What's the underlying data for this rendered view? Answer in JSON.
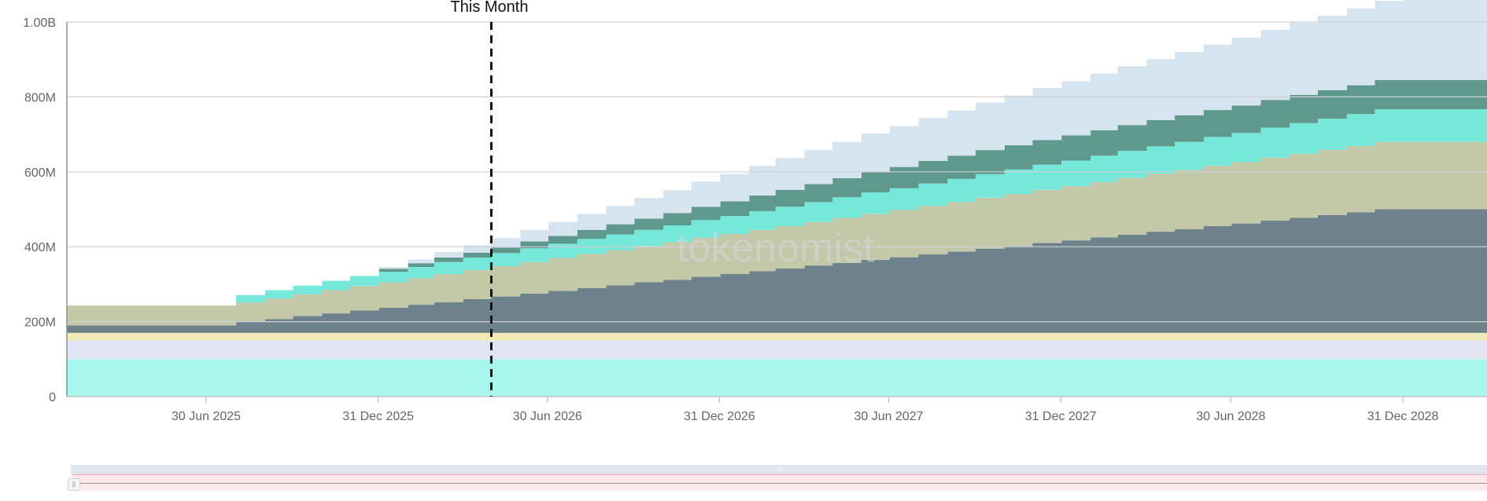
{
  "chart_data": {
    "type": "area",
    "stacked": true,
    "step": true,
    "x_axis": {
      "tick_labels": [
        "30 Jun 2025",
        "31 Dec 2025",
        "30 Jun 2026",
        "31 Dec 2026",
        "30 Jun 2027",
        "31 Dec 2027",
        "30 Jun 2028",
        "31 Dec 2028"
      ],
      "range": [
        "2025-02-01",
        "2029-03-31"
      ]
    },
    "y_axis": {
      "tick_labels": [
        "0",
        "200M",
        "400M",
        "600M",
        "800M",
        "1.00B"
      ],
      "ylim": [
        0,
        1000000000
      ]
    },
    "grid": true,
    "marker": {
      "label": "This Month",
      "date": "2026-05-01"
    },
    "watermark": "tokenomist",
    "x": [
      "2025-02-01",
      "2025-03-01",
      "2025-04-01",
      "2025-05-01",
      "2025-06-01",
      "2025-07-01",
      "2025-08-01",
      "2025-09-01",
      "2025-10-01",
      "2025-11-01",
      "2025-12-01",
      "2026-01-01",
      "2026-02-01",
      "2026-03-01",
      "2026-04-01",
      "2026-05-01",
      "2026-06-01",
      "2026-07-01",
      "2026-08-01",
      "2026-09-01",
      "2026-10-01",
      "2026-11-01",
      "2026-12-01",
      "2027-01-01",
      "2027-02-01",
      "2027-03-01",
      "2027-04-01",
      "2027-05-01",
      "2027-06-01",
      "2027-07-01",
      "2027-08-01",
      "2027-09-01",
      "2027-10-01",
      "2027-11-01",
      "2027-12-01",
      "2028-01-01",
      "2028-02-01",
      "2028-03-01",
      "2028-04-01",
      "2028-05-01",
      "2028-06-01",
      "2028-07-01",
      "2028-08-01",
      "2028-09-01",
      "2028-10-01",
      "2028-11-01",
      "2028-12-01",
      "2029-01-01",
      "2029-02-01",
      "2029-03-01",
      "2029-04-01"
    ],
    "series": [
      {
        "color": "#a7f7ec",
        "values": [
          100,
          100,
          100,
          100,
          100,
          100,
          100,
          100,
          100,
          100,
          100,
          100,
          100,
          100,
          100,
          100,
          100,
          100,
          100,
          100,
          100,
          100,
          100,
          100,
          100,
          100,
          100,
          100,
          100,
          100,
          100,
          100,
          100,
          100,
          100,
          100,
          100,
          100,
          100,
          100,
          100,
          100,
          100,
          100,
          100,
          100,
          100,
          100,
          100,
          100,
          100
        ]
      },
      {
        "color": "#e4e3f1",
        "values": [
          50,
          50,
          50,
          50,
          50,
          50,
          50,
          50,
          50,
          50,
          50,
          50,
          50,
          50,
          50,
          50,
          50,
          50,
          50,
          50,
          50,
          50,
          50,
          50,
          50,
          50,
          50,
          50,
          50,
          50,
          50,
          50,
          50,
          50,
          50,
          50,
          50,
          50,
          50,
          50,
          50,
          50,
          50,
          50,
          50,
          50,
          50,
          50,
          50,
          50,
          50
        ]
      },
      {
        "color": "#f1ecb6",
        "values": [
          20,
          20,
          20,
          20,
          20,
          20,
          20,
          20,
          20,
          20,
          20,
          20,
          20,
          20,
          20,
          20,
          20,
          20,
          20,
          20,
          20,
          20,
          20,
          20,
          20,
          20,
          20,
          20,
          20,
          20,
          20,
          20,
          20,
          20,
          20,
          20,
          20,
          20,
          20,
          20,
          20,
          20,
          20,
          20,
          20,
          20,
          20,
          20,
          20,
          20,
          20
        ]
      },
      {
        "color": "#6e828c",
        "values": [
          20,
          20,
          20,
          20,
          20,
          20,
          30,
          37,
          45,
          52,
          60,
          67,
          75,
          82,
          90,
          97,
          105,
          112,
          120,
          127,
          135,
          142,
          150,
          157,
          165,
          172,
          180,
          187,
          195,
          202,
          210,
          217,
          225,
          232,
          240,
          247,
          255,
          262,
          270,
          277,
          285,
          292,
          300,
          307,
          315,
          322,
          330,
          330,
          330,
          330,
          330
        ]
      },
      {
        "color": "#c3c8a8",
        "values": [
          53,
          53,
          53,
          53,
          53,
          53,
          51,
          55,
          58,
          62,
          65,
          68,
          71,
          75,
          78,
          81,
          84,
          88,
          91,
          94,
          97,
          100,
          104,
          107,
          110,
          113,
          116,
          120,
          123,
          126,
          129,
          132,
          136,
          139,
          142,
          145,
          148,
          152,
          155,
          158,
          161,
          164,
          168,
          171,
          174,
          177,
          180,
          180,
          180,
          180,
          180
        ]
      },
      {
        "color": "#75e8d9",
        "values": [
          0,
          0,
          0,
          0,
          0,
          0,
          20,
          22,
          23,
          25,
          27,
          28,
          30,
          32,
          33,
          35,
          37,
          38,
          40,
          42,
          43,
          45,
          47,
          48,
          50,
          52,
          53,
          55,
          57,
          58,
          60,
          62,
          63,
          65,
          67,
          68,
          70,
          72,
          73,
          75,
          77,
          78,
          80,
          82,
          83,
          85,
          87,
          87,
          87,
          87,
          87
        ]
      },
      {
        "color": "#5f988c",
        "values": [
          0,
          0,
          0,
          0,
          0,
          0,
          0,
          0,
          0,
          0,
          0,
          8,
          10,
          12,
          13,
          15,
          18,
          21,
          24,
          27,
          30,
          33,
          36,
          39,
          42,
          45,
          48,
          51,
          54,
          57,
          60,
          62,
          64,
          65,
          66,
          67,
          68,
          69,
          70,
          71,
          72,
          73,
          74,
          75,
          76,
          77,
          78,
          78,
          78,
          78,
          78
        ]
      },
      {
        "color": "#d5e4ee",
        "values": [
          0,
          0,
          0,
          0,
          0,
          0,
          0,
          0,
          0,
          0,
          0,
          5,
          10,
          15,
          20,
          25,
          31,
          37,
          43,
          49,
          55,
          61,
          67,
          73,
          79,
          85,
          91,
          97,
          103,
          109,
          115,
          121,
          127,
          133,
          139,
          145,
          151,
          157,
          163,
          169,
          175,
          181,
          187,
          193,
          199,
          205,
          211,
          225,
          245,
          245,
          245
        ]
      }
    ],
    "value_unit": "million"
  }
}
